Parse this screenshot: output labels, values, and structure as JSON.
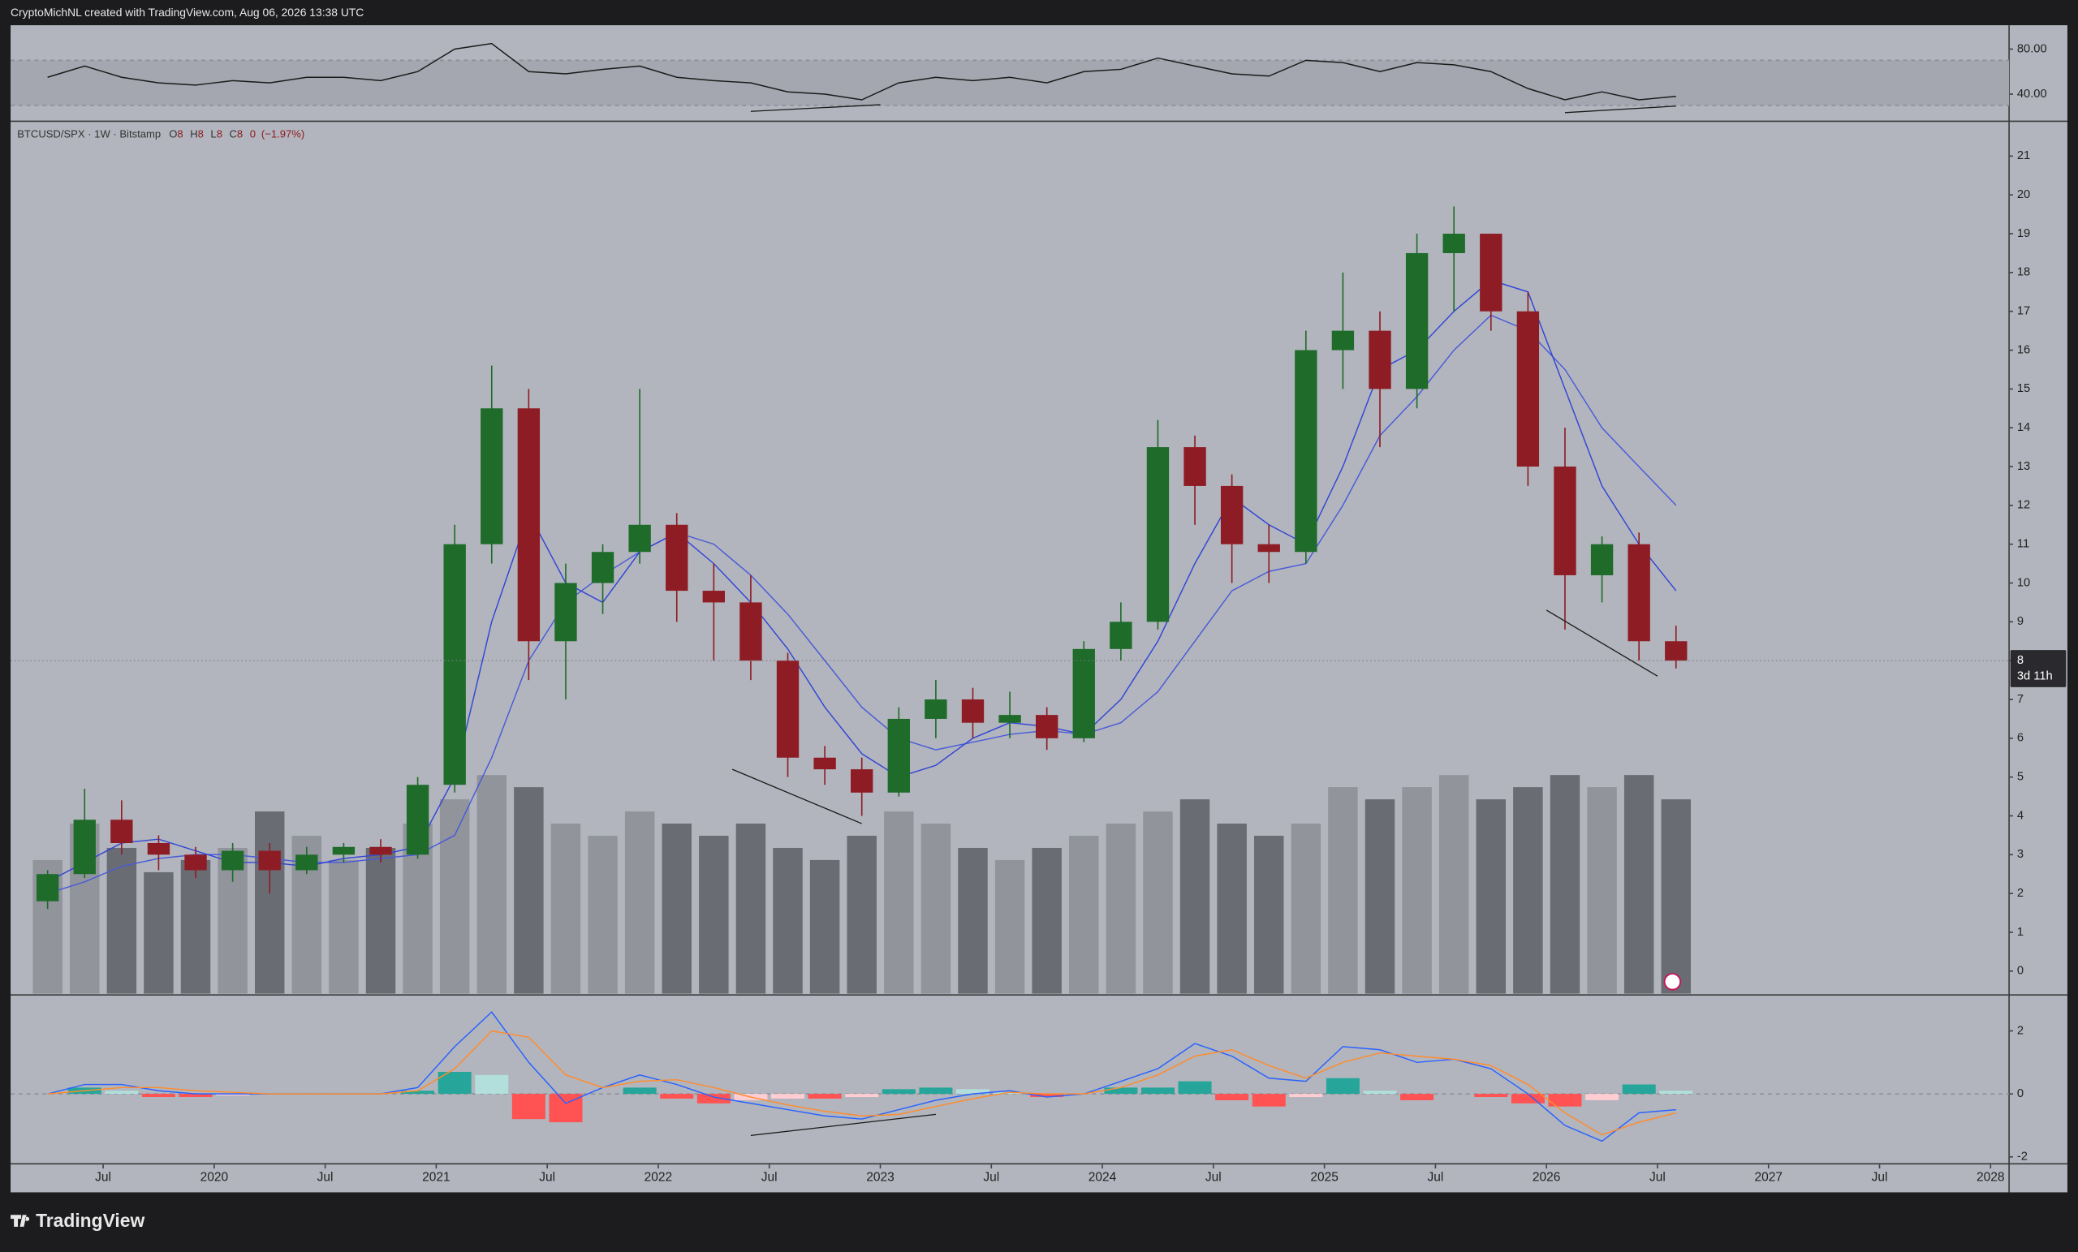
{
  "header": {
    "text": "CryptoMichNL created with TradingView.com, Aug 06, 2026 13:38 UTC"
  },
  "footer": {
    "brand": "TradingView"
  },
  "chart_data": [
    {
      "type": "line",
      "ylim": [
        16.5,
        100
      ],
      "yticks": [
        {
          "value": 40,
          "label": "40.00"
        },
        {
          "value": 80,
          "label": "80.00"
        }
      ],
      "band": [
        30,
        70
      ],
      "color": "#1a1a1a",
      "xlim": [
        "2019-02",
        "2028-02"
      ],
      "x": [
        "2019-03",
        "2019-05",
        "2019-07",
        "2019-09",
        "2019-11",
        "2020-01",
        "2020-03",
        "2020-05",
        "2020-07",
        "2020-09",
        "2020-11",
        "2021-01",
        "2021-03",
        "2021-05",
        "2021-07",
        "2021-09",
        "2021-11",
        "2022-01",
        "2022-03",
        "2022-05",
        "2022-07",
        "2022-09",
        "2022-11",
        "2023-01",
        "2023-03",
        "2023-05",
        "2023-07",
        "2023-09",
        "2023-11",
        "2024-01",
        "2024-03",
        "2024-05",
        "2024-07",
        "2024-09",
        "2024-11",
        "2025-01",
        "2025-03",
        "2025-05",
        "2025-07",
        "2025-09",
        "2025-11",
        "2026-01",
        "2026-03",
        "2026-05",
        "2026-07"
      ],
      "values": [
        55,
        65,
        55,
        50,
        48,
        52,
        50,
        55,
        55,
        52,
        60,
        80,
        85,
        60,
        58,
        62,
        65,
        55,
        52,
        50,
        42,
        40,
        35,
        50,
        55,
        52,
        55,
        50,
        60,
        62,
        72,
        65,
        58,
        56,
        70,
        68,
        60,
        68,
        66,
        60,
        45,
        35,
        42,
        35,
        38
      ],
      "trendlines": [
        {
          "x": [
            "2022-06",
            "2023-01"
          ],
          "y": [
            24.7,
            30.6
          ]
        },
        {
          "x": [
            "2026-02",
            "2026-08"
          ],
          "y": [
            23.6,
            29.4
          ]
        }
      ]
    },
    {
      "type": "candlestick",
      "symbol": "BTCUSD/SPX · 1W · Bitstamp",
      "legend": {
        "items": [
          {
            "label": "O",
            "value": 8
          },
          {
            "label": "H",
            "value": 8
          },
          {
            "label": "L",
            "value": 8
          },
          {
            "label": "C",
            "value": 8
          }
        ],
        "change": 0,
        "change_pct": {
          "value": -1.97,
          "label": "(−1.97%)"
        }
      },
      "last_price": 8,
      "countdown": "3d 11h",
      "ylim": [
        -0.58,
        21.88
      ],
      "yticks": [
        0,
        1,
        2,
        3,
        4,
        5,
        6,
        7,
        8,
        9,
        10,
        11,
        12,
        13,
        14,
        15,
        16,
        17,
        18,
        19,
        20,
        21
      ],
      "up_color": "#1e6b2a",
      "down_color": "#8e1c24",
      "volume_up_color": "#8b8e95",
      "volume_down_color": "#5c5f66",
      "ma_fast_color": "#3346d6",
      "ma_slow_color": "#4a5cd8",
      "xlim": [
        "2019-02",
        "2028-02"
      ],
      "x": [
        "2019-03",
        "2019-05",
        "2019-07",
        "2019-09",
        "2019-11",
        "2020-01",
        "2020-03",
        "2020-05",
        "2020-07",
        "2020-09",
        "2020-11",
        "2021-01",
        "2021-03",
        "2021-05",
        "2021-07",
        "2021-09",
        "2021-11",
        "2022-01",
        "2022-03",
        "2022-05",
        "2022-07",
        "2022-09",
        "2022-11",
        "2023-01",
        "2023-03",
        "2023-05",
        "2023-07",
        "2023-09",
        "2023-11",
        "2024-01",
        "2024-03",
        "2024-05",
        "2024-07",
        "2024-09",
        "2024-11",
        "2025-01",
        "2025-03",
        "2025-05",
        "2025-07",
        "2025-09",
        "2025-11",
        "2026-01",
        "2026-03",
        "2026-05",
        "2026-07"
      ],
      "open": [
        1.8,
        2.5,
        3.9,
        3.3,
        3.0,
        2.6,
        3.1,
        2.6,
        3.0,
        3.2,
        3.0,
        4.8,
        11.0,
        14.5,
        8.5,
        10.0,
        10.8,
        11.5,
        9.8,
        9.5,
        8.0,
        5.5,
        5.2,
        4.6,
        6.5,
        7.0,
        6.4,
        6.6,
        6.0,
        8.3,
        9.0,
        13.5,
        12.5,
        11.0,
        10.8,
        16.0,
        16.5,
        15.0,
        18.5,
        19.0,
        17.0,
        13.0,
        10.2,
        11.0,
        8.5
      ],
      "high": [
        2.6,
        4.7,
        4.4,
        3.5,
        3.2,
        3.3,
        3.3,
        3.2,
        3.3,
        3.4,
        5.0,
        11.5,
        15.6,
        15.0,
        10.5,
        11.0,
        15.0,
        11.8,
        10.5,
        10.2,
        8.2,
        5.8,
        5.5,
        6.8,
        7.5,
        7.3,
        7.2,
        6.8,
        8.5,
        9.5,
        14.2,
        13.8,
        12.8,
        11.5,
        16.5,
        18.0,
        17.0,
        19.0,
        19.7,
        19.0,
        17.5,
        14.0,
        11.2,
        11.3,
        8.9
      ],
      "low": [
        1.6,
        2.4,
        3.0,
        2.6,
        2.4,
        2.3,
        2.0,
        2.5,
        2.8,
        2.8,
        2.9,
        4.6,
        10.5,
        7.5,
        7.0,
        9.2,
        10.5,
        9.0,
        8.0,
        7.5,
        5.0,
        4.8,
        4.0,
        4.5,
        6.0,
        6.0,
        6.0,
        5.7,
        5.9,
        8.0,
        8.8,
        11.5,
        10.0,
        10.0,
        10.5,
        15.0,
        13.5,
        14.5,
        17.0,
        16.5,
        12.5,
        8.8,
        9.5,
        8.0,
        7.8
      ],
      "close": [
        2.5,
        3.9,
        3.3,
        3.0,
        2.6,
        3.1,
        2.6,
        3.0,
        3.2,
        3.0,
        4.8,
        11.0,
        14.5,
        8.5,
        10.0,
        10.8,
        11.5,
        9.8,
        9.5,
        8.0,
        5.5,
        5.2,
        4.6,
        6.5,
        7.0,
        6.4,
        6.6,
        6.0,
        8.3,
        9.0,
        13.5,
        12.5,
        11.0,
        10.8,
        16.0,
        16.5,
        15.0,
        18.5,
        19.0,
        17.0,
        13.0,
        10.2,
        11.0,
        8.5,
        8.0
      ],
      "volume": [
        55,
        70,
        60,
        50,
        55,
        60,
        75,
        65,
        55,
        60,
        70,
        80,
        90,
        85,
        70,
        65,
        75,
        70,
        65,
        70,
        60,
        55,
        65,
        75,
        70,
        60,
        55,
        60,
        65,
        70,
        75,
        80,
        70,
        65,
        70,
        85,
        80,
        85,
        90,
        80,
        85,
        90,
        85,
        90,
        80
      ],
      "ma_fast": [
        2.3,
        2.8,
        3.3,
        3.4,
        3.1,
        2.8,
        2.8,
        2.7,
        2.9,
        3.0,
        3.2,
        5.0,
        9.0,
        11.8,
        10.0,
        9.5,
        10.8,
        11.3,
        10.5,
        9.5,
        8.3,
        6.8,
        5.6,
        5.0,
        5.3,
        6.0,
        6.4,
        6.3,
        6.1,
        7.0,
        8.5,
        10.5,
        12.2,
        11.5,
        11.0,
        13.0,
        15.5,
        16.0,
        17.0,
        17.8,
        17.5,
        15.0,
        12.5,
        11.0,
        9.8
      ],
      "ma_slow": [
        2.0,
        2.3,
        2.7,
        2.9,
        3.0,
        3.0,
        2.9,
        2.8,
        2.8,
        2.9,
        3.0,
        3.5,
        5.5,
        8.0,
        9.5,
        10.2,
        10.8,
        11.3,
        11.0,
        10.2,
        9.2,
        8.0,
        6.8,
        6.0,
        5.7,
        5.9,
        6.1,
        6.2,
        6.1,
        6.4,
        7.2,
        8.5,
        9.8,
        10.3,
        10.5,
        12.0,
        13.8,
        14.8,
        16.0,
        16.9,
        16.5,
        15.5,
        14.0,
        13.0,
        12.0
      ],
      "trendlines": [
        {
          "x": [
            "2022-05",
            "2022-12"
          ],
          "y": [
            5.2,
            3.8
          ]
        },
        {
          "x": [
            "2026-01",
            "2026-07"
          ],
          "y": [
            9.3,
            7.6
          ]
        }
      ]
    },
    {
      "type": "macd",
      "ylim": [
        -2.2,
        3.1
      ],
      "yticks": [
        -2,
        0,
        2
      ],
      "macd_color": "#2962ff",
      "signal_color": "#ff8c2e",
      "xlim": [
        "2019-02",
        "2028-02"
      ],
      "xticks": [
        {
          "value": "2019-07",
          "label": "Jul"
        },
        {
          "value": "2020-01",
          "label": "2020"
        },
        {
          "value": "2020-07",
          "label": "Jul"
        },
        {
          "value": "2021-01",
          "label": "2021"
        },
        {
          "value": "2021-07",
          "label": "Jul"
        },
        {
          "value": "2022-01",
          "label": "2022"
        },
        {
          "value": "2022-07",
          "label": "Jul"
        },
        {
          "value": "2023-01",
          "label": "2023"
        },
        {
          "value": "2023-07",
          "label": "Jul"
        },
        {
          "value": "2024-01",
          "label": "2024"
        },
        {
          "value": "2024-07",
          "label": "Jul"
        },
        {
          "value": "2025-01",
          "label": "2025"
        },
        {
          "value": "2025-07",
          "label": "Jul"
        },
        {
          "value": "2026-01",
          "label": "2026"
        },
        {
          "value": "2026-07",
          "label": "Jul"
        },
        {
          "value": "2027-01",
          "label": "2027"
        },
        {
          "value": "2027-07",
          "label": "Jul"
        },
        {
          "value": "2028-01",
          "label": "2028"
        }
      ],
      "x": [
        "2019-03",
        "2019-05",
        "2019-07",
        "2019-09",
        "2019-11",
        "2020-01",
        "2020-03",
        "2020-05",
        "2020-07",
        "2020-09",
        "2020-11",
        "2021-01",
        "2021-03",
        "2021-05",
        "2021-07",
        "2021-09",
        "2021-11",
        "2022-01",
        "2022-03",
        "2022-05",
        "2022-07",
        "2022-09",
        "2022-11",
        "2023-01",
        "2023-03",
        "2023-05",
        "2023-07",
        "2023-09",
        "2023-11",
        "2024-01",
        "2024-03",
        "2024-05",
        "2024-07",
        "2024-09",
        "2024-11",
        "2025-01",
        "2025-03",
        "2025-05",
        "2025-07",
        "2025-09",
        "2025-11",
        "2026-01",
        "2026-03",
        "2026-05",
        "2026-07"
      ],
      "macd": [
        0,
        0.3,
        0.3,
        0.1,
        0,
        0,
        0,
        0,
        0,
        0,
        0.2,
        1.5,
        2.6,
        1.0,
        -0.3,
        0.2,
        0.6,
        0.3,
        -0.1,
        -0.3,
        -0.5,
        -0.7,
        -0.8,
        -0.5,
        -0.2,
        0,
        0.1,
        -0.1,
        0,
        0.4,
        0.8,
        1.6,
        1.2,
        0.5,
        0.4,
        1.5,
        1.4,
        1.0,
        1.1,
        0.8,
        0,
        -1.0,
        -1.5,
        -0.6,
        -0.5
      ],
      "signal": [
        0,
        0.1,
        0.2,
        0.2,
        0.1,
        0.05,
        0,
        0,
        0,
        0,
        0.1,
        0.8,
        2.0,
        1.8,
        0.6,
        0.2,
        0.4,
        0.45,
        0.2,
        -0.1,
        -0.35,
        -0.55,
        -0.7,
        -0.65,
        -0.4,
        -0.15,
        0.05,
        0,
        0,
        0.2,
        0.6,
        1.2,
        1.4,
        0.9,
        0.5,
        1.0,
        1.3,
        1.2,
        1.1,
        0.9,
        0.3,
        -0.6,
        -1.3,
        -0.9,
        -0.6
      ],
      "histogram": [
        0,
        0.2,
        0.1,
        -0.1,
        -0.1,
        -0.05,
        0,
        0,
        0,
        0,
        0.1,
        0.7,
        0.6,
        -0.8,
        -0.9,
        0,
        0.2,
        -0.15,
        -0.3,
        -0.2,
        -0.15,
        -0.15,
        -0.1,
        0.15,
        0.2,
        0.15,
        0.05,
        -0.1,
        0,
        0.2,
        0.2,
        0.4,
        -0.2,
        -0.4,
        -0.1,
        0.5,
        0.1,
        -0.2,
        0,
        -0.1,
        -0.3,
        -0.4,
        -0.2,
        0.3,
        0.1
      ],
      "trendlines": [
        {
          "x": [
            "2022-06",
            "2023-04"
          ],
          "y": [
            -1.32,
            -0.65
          ]
        }
      ]
    }
  ]
}
